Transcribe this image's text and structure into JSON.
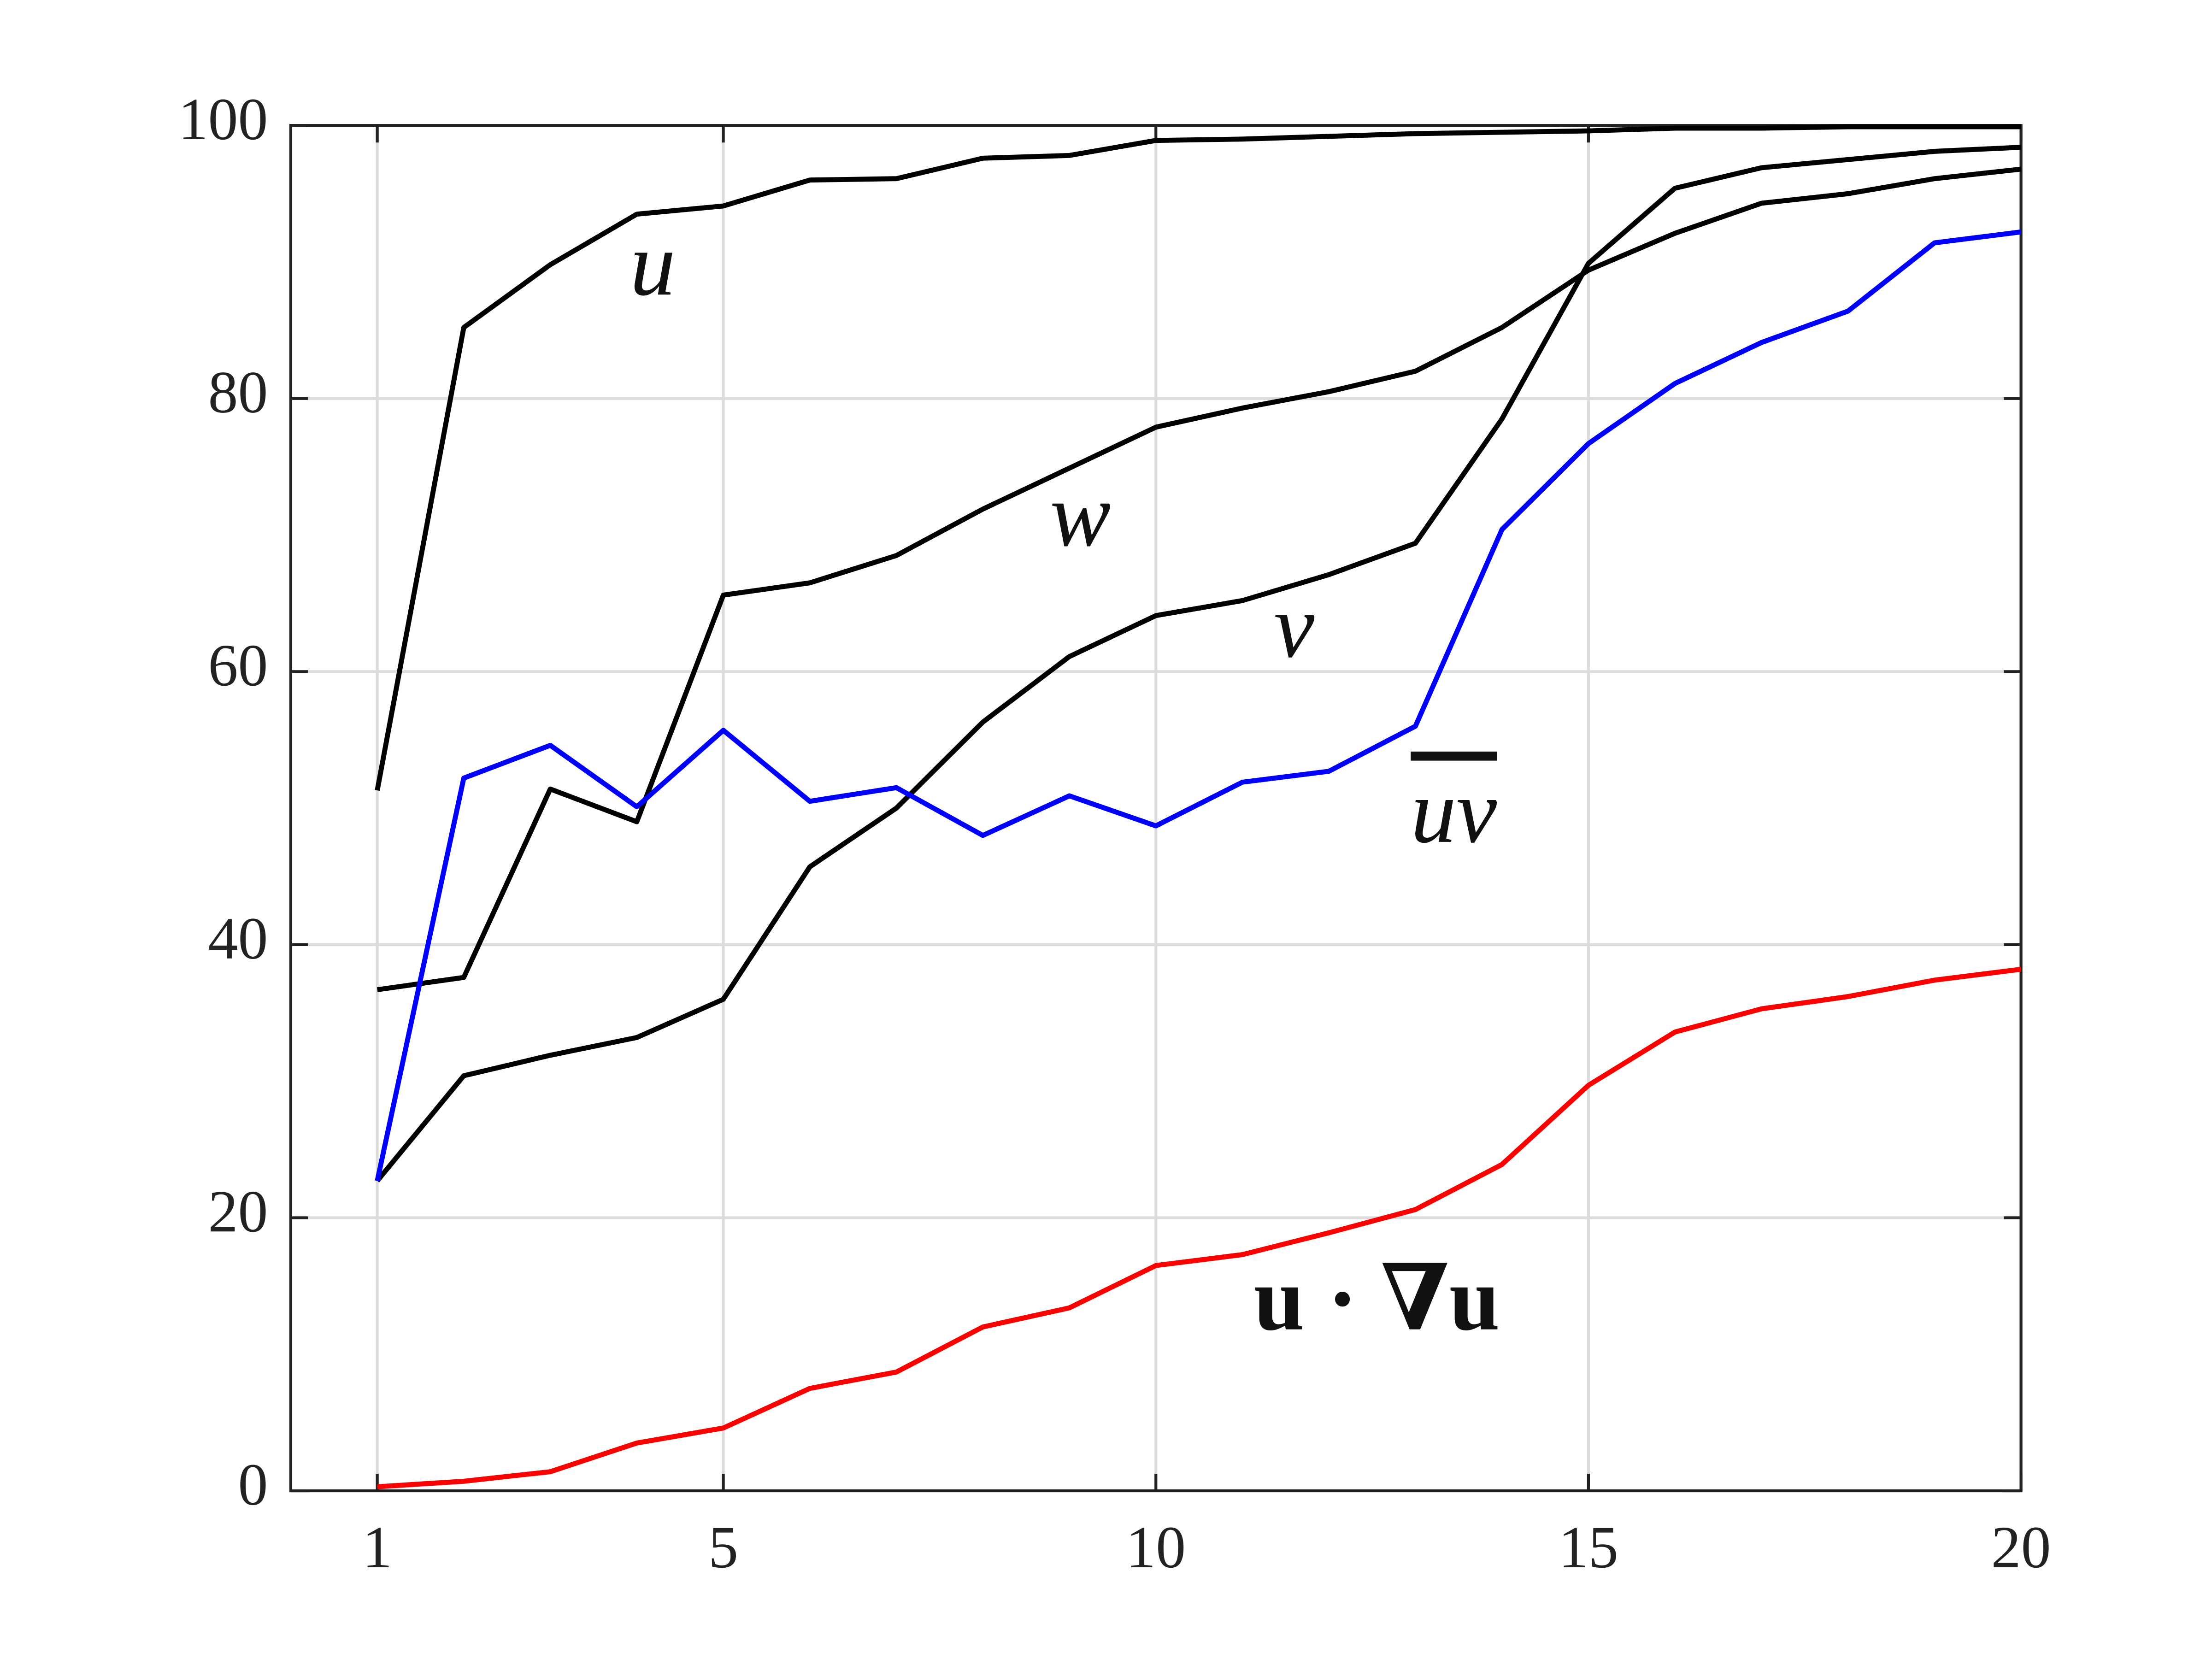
{
  "chart_data": {
    "type": "line",
    "x": [
      1,
      2,
      3,
      4,
      5,
      6,
      7,
      8,
      9,
      10,
      11,
      12,
      13,
      14,
      15,
      16,
      17,
      18,
      19,
      20
    ],
    "xlim": [
      0,
      20
    ],
    "xticks": [
      1,
      5,
      10,
      15,
      20
    ],
    "ylim": [
      0,
      100
    ],
    "yticks": [
      0,
      20,
      40,
      60,
      80,
      100
    ],
    "grid": true,
    "series": [
      {
        "name": "u",
        "color": "#000000",
        "values": [
          51.3,
          85.2,
          89.8,
          93.5,
          94.1,
          96.0,
          96.1,
          97.6,
          97.8,
          98.9,
          99.0,
          99.2,
          99.4,
          99.5,
          99.6,
          99.8,
          99.8,
          99.9,
          99.9,
          99.9
        ]
      },
      {
        "name": "w",
        "color": "#000000",
        "values": [
          36.7,
          37.6,
          51.4,
          49.0,
          65.6,
          66.5,
          68.5,
          71.9,
          74.9,
          77.9,
          79.3,
          80.5,
          82.0,
          85.2,
          89.4,
          92.1,
          94.3,
          95.0,
          96.1,
          96.8
        ]
      },
      {
        "name": "v",
        "color": "#000000",
        "values": [
          22.7,
          30.4,
          31.9,
          33.2,
          36.0,
          45.7,
          50.0,
          56.3,
          61.1,
          64.1,
          65.2,
          67.1,
          69.4,
          78.5,
          89.9,
          95.4,
          96.9,
          97.5,
          98.1,
          98.4
        ]
      },
      {
        "name": "uv",
        "color": "#0000ff",
        "values": [
          22.7,
          52.2,
          54.6,
          50.1,
          55.7,
          50.5,
          51.5,
          48.0,
          50.9,
          48.7,
          51.9,
          52.7,
          56.0,
          70.4,
          76.7,
          81.1,
          84.1,
          86.4,
          91.4,
          92.2
        ]
      },
      {
        "name": "u · ∇u",
        "color": "#ff0000",
        "values": [
          0.3,
          0.7,
          1.4,
          3.5,
          4.6,
          7.5,
          8.7,
          12.0,
          13.4,
          16.5,
          17.3,
          18.9,
          20.6,
          23.9,
          29.7,
          33.6,
          35.3,
          36.2,
          37.4,
          38.2
        ]
      }
    ]
  }
}
